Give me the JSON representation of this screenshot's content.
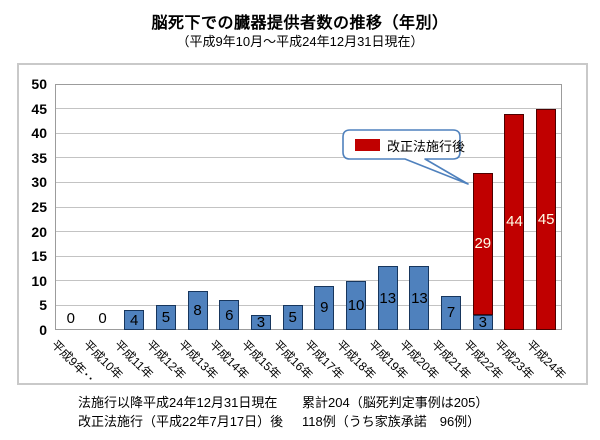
{
  "title": "脳死下での臓器提供者数の推移（年別）",
  "subtitle": "（平成9年10月～平成24年12月31日現在）",
  "legend_callout": {
    "label": "改正法施行後",
    "swatch_color": "#C00000"
  },
  "footnote": {
    "line1_left": "法施行以降平成24年12月31日現在",
    "line1_right": "累計204（脳死判定事例は205）",
    "line2_left": "改正法施行（平成22年7月17日）後",
    "line2_right": "118例（うち家族承諾　96例）"
  },
  "chart_data": {
    "type": "bar",
    "stacked": true,
    "title": "脳死下での臓器提供者数の推移（年別）",
    "categories": [
      "平成9年･･",
      "平成10年",
      "平成11年",
      "平成12年",
      "平成13年",
      "平成14年",
      "平成15年",
      "平成16年",
      "平成17年",
      "平成18年",
      "平成19年",
      "平成20年",
      "平成21年",
      "平成22年",
      "平成23年",
      "平成24年"
    ],
    "series": [
      {
        "name": "",
        "color": "#4F81BD",
        "border_color": "#17365D",
        "values": [
          0,
          0,
          4,
          5,
          8,
          6,
          3,
          5,
          9,
          10,
          13,
          13,
          7,
          3,
          0,
          0
        ]
      },
      {
        "name": "改正法施行後",
        "color": "#C00000",
        "border_color": "#4D0000",
        "values": [
          0,
          0,
          0,
          0,
          0,
          0,
          0,
          0,
          0,
          0,
          0,
          0,
          0,
          29,
          44,
          45
        ]
      }
    ],
    "ylim": [
      0,
      50
    ],
    "ytick_step": 5,
    "grid": true,
    "data_labels": true,
    "legend_position": "callout-over-plot"
  }
}
